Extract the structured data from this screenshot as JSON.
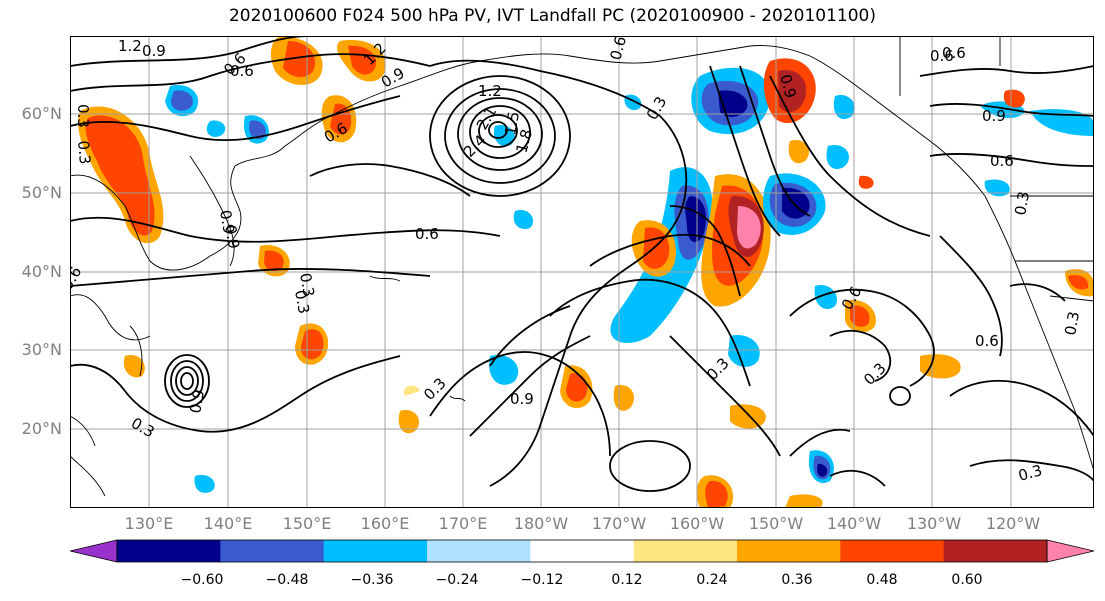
{
  "title": "2020100600 F024 500 hPa PV, IVT Landfall PC (2020100900 - 2020101100)",
  "lat_labels": [
    "60°N",
    "50°N",
    "40°N",
    "30°N",
    "20°N"
  ],
  "lon_labels": [
    "130°E",
    "140°E",
    "150°E",
    "160°E",
    "170°E",
    "180°W",
    "170°W",
    "160°W",
    "150°W",
    "140°W",
    "130°W",
    "120°W"
  ],
  "contour_labels": [
    "1.2",
    "0.9",
    "0.6",
    "0.3",
    "1.2",
    "0.9",
    "1.2",
    "2.1",
    "2.4",
    "1.8",
    "1.5",
    "0.6",
    "0.9",
    "0.6",
    "0.3",
    "0.6",
    "0.9",
    "0.6",
    "0.9",
    "0.6",
    "0.3",
    "0.6",
    "0.9",
    "0.6",
    "0.3",
    "0.9",
    "0.6",
    "0.3",
    "0.3",
    "0.9",
    "0.3",
    "0.6",
    "0.3",
    "0.3",
    "0.6",
    "0.3",
    "0.3",
    "0.3"
  ],
  "colorbar": {
    "ticks": [
      "−0.60",
      "−0.48",
      "−0.36",
      "−0.24",
      "−0.12",
      "0.12",
      "0.24",
      "0.36",
      "0.48",
      "0.60"
    ],
    "colors": [
      "#9932cc",
      "#00008b",
      "#3a5bcd",
      "#00bfff",
      "#b0e2ff",
      "#ffffff",
      "#ffe681",
      "#ffa500",
      "#ff4500",
      "#b22222",
      "#ff82ab"
    ]
  },
  "colors": {
    "grid": "#a0a0a0",
    "coast": "#000000",
    "contour": "#000000",
    "axis_text": "#808080"
  }
}
